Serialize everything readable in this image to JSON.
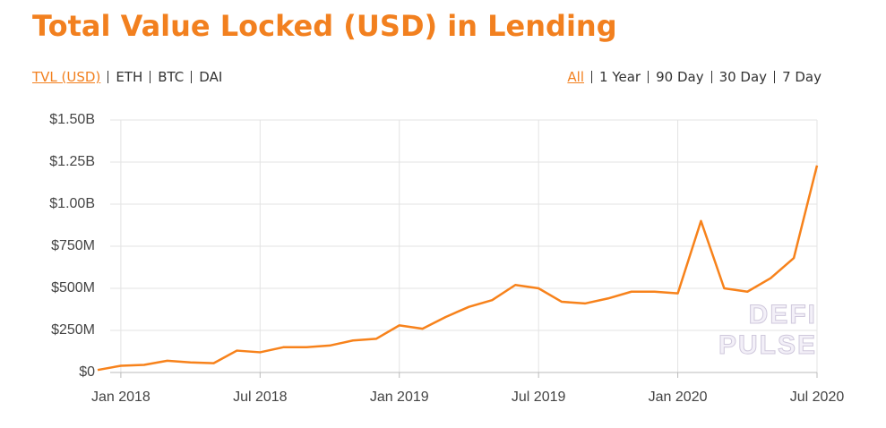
{
  "chart_data": {
    "type": "line",
    "title": "Total Value Locked (USD) in Lending",
    "x": [
      "2017-12",
      "2018-01",
      "2018-02",
      "2018-03",
      "2018-04",
      "2018-05",
      "2018-06",
      "2018-07",
      "2018-08",
      "2018-09",
      "2018-10",
      "2018-11",
      "2018-12",
      "2019-01",
      "2019-02",
      "2019-03",
      "2019-04",
      "2019-05",
      "2019-06",
      "2019-07",
      "2019-08",
      "2019-09",
      "2019-10",
      "2019-11",
      "2019-12",
      "2020-01",
      "2020-02",
      "2020-03",
      "2020-04",
      "2020-05",
      "2020-06",
      "2020-07"
    ],
    "series": [
      {
        "name": "TVL (USD)",
        "color": "#f7821b",
        "values": [
          15000000,
          40000000,
          45000000,
          70000000,
          60000000,
          55000000,
          130000000,
          120000000,
          150000000,
          150000000,
          160000000,
          190000000,
          200000000,
          280000000,
          260000000,
          330000000,
          390000000,
          430000000,
          520000000,
          500000000,
          420000000,
          410000000,
          440000000,
          480000000,
          480000000,
          470000000,
          900000000,
          500000000,
          480000000,
          560000000,
          680000000,
          1230000000
        ]
      }
    ],
    "xlim": [
      "2017-12",
      "2020-07"
    ],
    "xticks": [
      {
        "value": "2018-01",
        "label": "Jan 2018"
      },
      {
        "value": "2018-07",
        "label": "Jul 2018"
      },
      {
        "value": "2019-01",
        "label": "Jan 2019"
      },
      {
        "value": "2019-07",
        "label": "Jul 2019"
      },
      {
        "value": "2020-01",
        "label": "Jan 2020"
      },
      {
        "value": "2020-07",
        "label": "Jul 2020"
      }
    ],
    "ylim": [
      0,
      1500000000
    ],
    "yticks": [
      {
        "value": 0,
        "label": "$0"
      },
      {
        "value": 250000000,
        "label": "$250M"
      },
      {
        "value": 500000000,
        "label": "$500M"
      },
      {
        "value": 750000000,
        "label": "$750M"
      },
      {
        "value": 1000000000,
        "label": "$1.00B"
      },
      {
        "value": 1250000000,
        "label": "$1.25B"
      },
      {
        "value": 1500000000,
        "label": "$1.50B"
      }
    ],
    "grid": true
  },
  "metric_tabs": [
    "TVL (USD)",
    "ETH",
    "BTC",
    "DAI"
  ],
  "range_tabs": [
    "All",
    "1 Year",
    "90 Day",
    "30 Day",
    "7 Day"
  ],
  "watermark": [
    "DEFI",
    "PULSE"
  ]
}
